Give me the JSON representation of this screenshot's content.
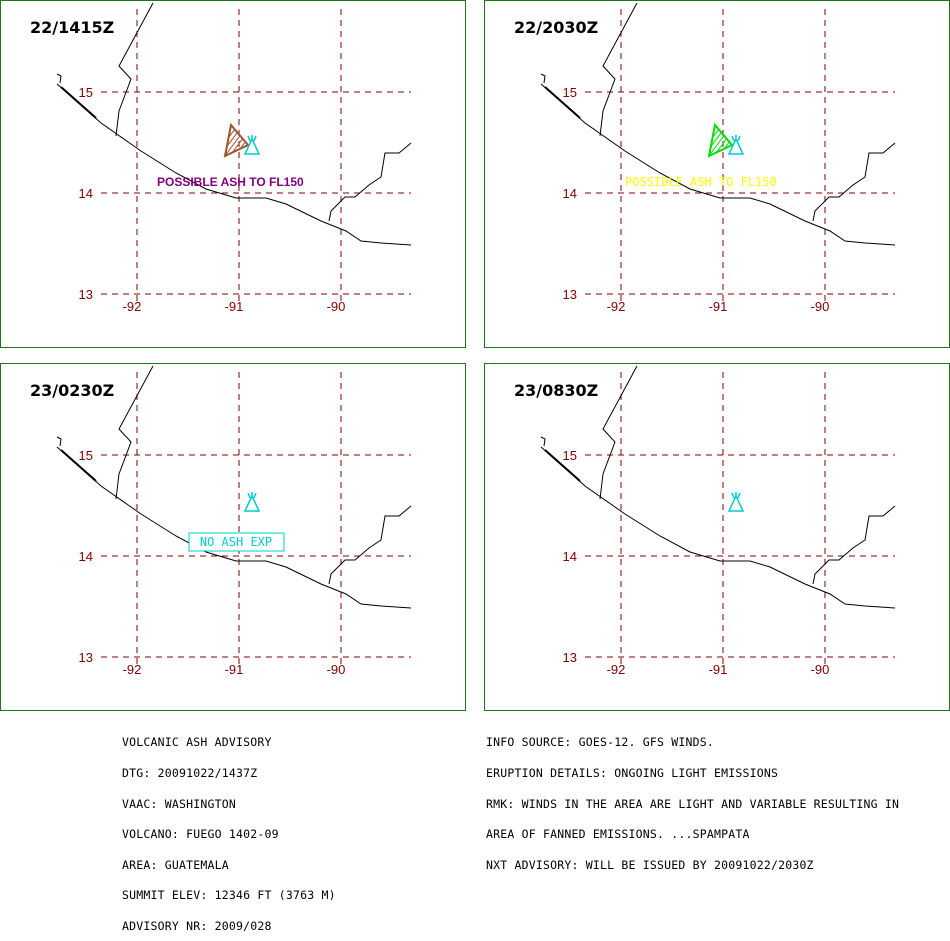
{
  "panels": [
    {
      "title": "22/1415Z",
      "ash": {
        "text": "POSSIBLE ASH TO FL150",
        "color": "#800080",
        "boxed": false
      },
      "polygon_color": "#a0522d"
    },
    {
      "title": "22/2030Z",
      "ash": {
        "text": "POSSIBLE ASH TO FL150",
        "color": "#ffff00",
        "boxed": false
      },
      "polygon_color": "#00dd00"
    },
    {
      "title": "23/0230Z",
      "ash": {
        "text": "NO ASH EXP",
        "color": "#00cccc",
        "boxed": true
      },
      "polygon_color": null
    },
    {
      "title": "23/0830Z",
      "ash": null,
      "polygon_color": null
    }
  ],
  "axes": {
    "lat_labels": [
      "15",
      "14",
      "13"
    ],
    "lon_labels": [
      "-92",
      "-91",
      "-90"
    ]
  },
  "colors": {
    "grid": "#800000",
    "coast": "#000000",
    "volcano": "#00cccc",
    "frame": "#1a7a1a"
  },
  "advisory_left": [
    "VOLCANIC ASH ADVISORY",
    "DTG: 20091022/1437Z",
    "VAAC: WASHINGTON",
    "VOLCANO: FUEGO 1402-09",
    "AREA: GUATEMALA",
    "SUMMIT ELEV: 12346 FT (3763 M)",
    "ADVISORY NR: 2009/028"
  ],
  "advisory_right": [
    "INFO SOURCE: GOES-12. GFS WINDS.",
    "ERUPTION DETAILS: ONGOING LIGHT EMISSIONS",
    "RMK: WINDS IN THE AREA ARE LIGHT AND VARIABLE RESULTING IN",
    "AREA OF FANNED EMISSIONS. ...SPAMPATA",
    "NXT ADVISORY: WILL BE ISSUED BY 20091022/2030Z"
  ]
}
